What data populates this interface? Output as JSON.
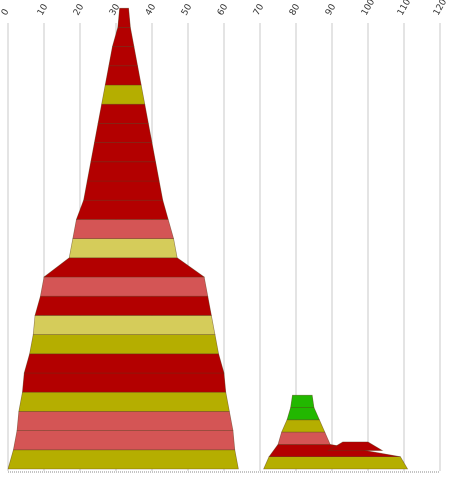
{
  "chart_data": {
    "type": "area",
    "title": "",
    "xlabel": "",
    "ylabel": "",
    "xlim": [
      0,
      120
    ],
    "x_ticks": [
      0,
      10,
      20,
      30,
      40,
      50,
      60,
      70,
      80,
      90,
      100,
      110,
      120
    ],
    "grid": true,
    "legend": "none",
    "layout": "stacked horizontal bands forming pyramid-shaped profiles",
    "colors": {
      "dark_red": "#b30000",
      "light_red": "#d45555",
      "olive": "#b5ae00",
      "light_olive": "#d5cc5a",
      "green": "#22b800",
      "grid": "#c8c8c8"
    },
    "series": [
      {
        "bands": [
          {
            "x_start": 0,
            "x_end": 64,
            "color": "olive"
          },
          {
            "x_start": 1.5,
            "x_end": 63,
            "color": "light_red"
          },
          {
            "x_start": 2.5,
            "x_end": 62.5,
            "color": "light_red"
          },
          {
            "x_start": 3,
            "x_end": 61.5,
            "color": "olive"
          },
          {
            "x_start": 4,
            "x_end": 60.5,
            "color": "dark_red"
          },
          {
            "x_start": 4.5,
            "x_end": 60,
            "color": "dark_red"
          },
          {
            "x_start": 6,
            "x_end": 58.5,
            "color": "olive"
          },
          {
            "x_start": 7,
            "x_end": 57.5,
            "color": "light_olive"
          },
          {
            "x_start": 7.5,
            "x_end": 56.5,
            "color": "dark_red"
          },
          {
            "x_start": 9,
            "x_end": 55.5,
            "color": "light_red"
          },
          {
            "x_start": 10,
            "x_end": 54.5,
            "color": "dark_red"
          },
          {
            "x_start": 17,
            "x_end": 47,
            "color": "light_olive"
          },
          {
            "x_start": 18,
            "x_end": 46,
            "color": "light_red"
          },
          {
            "x_start": 19,
            "x_end": 44.5,
            "color": "dark_red"
          },
          {
            "x_start": 21,
            "x_end": 43,
            "color": "dark_red"
          },
          {
            "x_start": 22,
            "x_end": 42,
            "color": "dark_red"
          },
          {
            "x_start": 23,
            "x_end": 41,
            "color": "dark_red"
          },
          {
            "x_start": 24,
            "x_end": 40,
            "color": "dark_red"
          },
          {
            "x_start": 25,
            "x_end": 39,
            "color": "dark_red"
          },
          {
            "x_start": 26,
            "x_end": 38,
            "color": "olive"
          },
          {
            "x_start": 27,
            "x_end": 37,
            "color": "dark_red"
          },
          {
            "x_start": 28,
            "x_end": 36,
            "color": "dark_red"
          },
          {
            "x_start": 29,
            "x_end": 35,
            "color": "dark_red"
          },
          {
            "x_start": 30.5,
            "x_end": 34,
            "color": "dark_red"
          }
        ]
      },
      {
        "bands": [
          {
            "x_start": 71,
            "x_end": 111,
            "color": "olive"
          },
          {
            "x_start": 72.5,
            "x_end": 109,
            "color": "dark_red"
          },
          {
            "x_start": 75,
            "x_end": 89.5,
            "color": "light_red"
          },
          {
            "x_start": 76,
            "x_end": 88,
            "color": "olive"
          },
          {
            "x_start": 77.5,
            "x_end": 86.5,
            "color": "green"
          },
          {
            "x_start": 78.5,
            "x_end": 85,
            "color": "green"
          }
        ],
        "bump": {
          "points": [
            [
              89,
              0.5
            ],
            [
              93,
              1.2
            ],
            [
              100,
              1.2
            ],
            [
              104,
              0.5
            ]
          ],
          "color": "dark_red"
        }
      }
    ]
  }
}
